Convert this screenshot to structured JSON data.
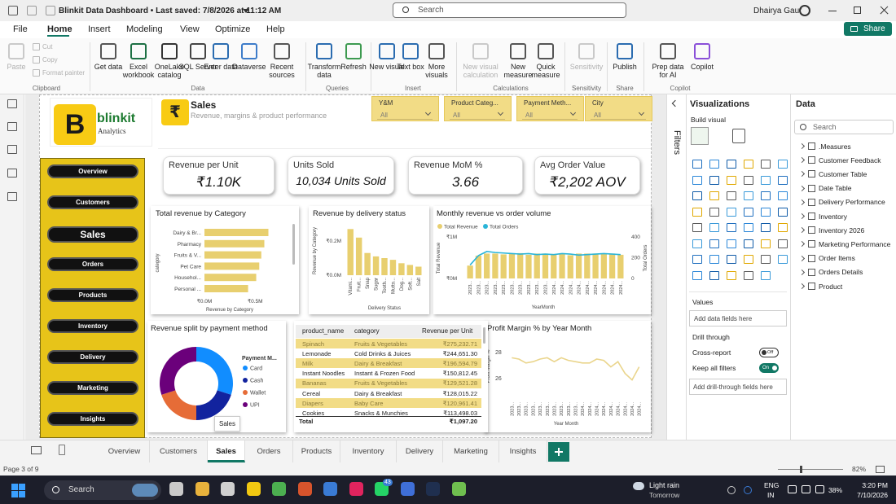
{
  "titlebar": {
    "title": "Blinkit Data Dashboard • Last saved: 7/8/2026 at 11:12 AM",
    "search": "Search",
    "user": "Dhairya Gaur"
  },
  "menu": {
    "items": [
      "File",
      "Home",
      "Insert",
      "Modeling",
      "View",
      "Optimize",
      "Help"
    ],
    "active": 1,
    "share": "Share"
  },
  "ribbon": {
    "groups": [
      {
        "label": "Clipboard",
        "items": [
          "Paste",
          "Cut",
          "Copy",
          "Format painter"
        ]
      },
      {
        "label": "Data",
        "items": [
          "Get data",
          "Excel workbook",
          "OneLake catalog",
          "SQL Server",
          "Enter data",
          "Dataverse",
          "Recent sources"
        ]
      },
      {
        "label": "Queries",
        "items": [
          "Transform data",
          "Refresh"
        ]
      },
      {
        "label": "Insert",
        "items": [
          "New visual",
          "Text box",
          "More visuals"
        ]
      },
      {
        "label": "Calculations",
        "items": [
          "New visual calculation",
          "New measure",
          "Quick measure"
        ]
      },
      {
        "label": "Sensitivity",
        "items": [
          "Sensitivity"
        ]
      },
      {
        "label": "Share",
        "items": [
          "Publish"
        ]
      },
      {
        "label": "Copilot",
        "items": [
          "Prep data for AI",
          "Copilot"
        ]
      }
    ]
  },
  "report": {
    "logo": {
      "mark": "B",
      "name": "blinkit",
      "tagline": "Analytics"
    },
    "header": {
      "icon": "₹",
      "title": "Sales",
      "subtitle": "Revenue, margins & product performance"
    },
    "slicers": [
      {
        "label": "Y&M",
        "value": "All"
      },
      {
        "label": "Product Categ...",
        "value": "All"
      },
      {
        "label": "Payment Meth...",
        "value": "All"
      },
      {
        "label": "City",
        "value": "All"
      }
    ],
    "nav": {
      "items": [
        "Overview",
        "Customers",
        "Sales",
        "Orders",
        "Products",
        "Inventory",
        "Delivery",
        "Marketing",
        "Insights"
      ],
      "active": 2
    },
    "kpis": [
      {
        "label": "Revenue per Unit",
        "value": "₹1.10K"
      },
      {
        "label": "Units Sold",
        "value": "10,034 Units Sold"
      },
      {
        "label": "Revenue MoM %",
        "value": "3.66"
      },
      {
        "label": "Avg Order Value",
        "value": "₹2,202 AOV"
      }
    ],
    "table": {
      "columns": [
        "product_name",
        "category",
        "Revenue per Unit"
      ],
      "rows": [
        [
          "Spinach",
          "Fruits & Vegetables",
          "₹275,232.71"
        ],
        [
          "Lemonade",
          "Cold Drinks & Juices",
          "₹244,651.30"
        ],
        [
          "Milk",
          "Dairy & Breakfast",
          "₹196,594.79"
        ],
        [
          "Instant Noodles",
          "Instant & Frozen Food",
          "₹150,812.45"
        ],
        [
          "Bananas",
          "Fruits & Vegetables",
          "₹129,521.28"
        ],
        [
          "Cereal",
          "Dairy & Breakfast",
          "₹128,015.22"
        ],
        [
          "Diapers",
          "Baby Care",
          "₹120,961.41"
        ],
        [
          "Cookies",
          "Snacks & Munchies",
          "₹113,498.03"
        ]
      ],
      "total": {
        "label": "Total",
        "value": "₹1,097.20"
      }
    }
  },
  "chart_data": [
    {
      "type": "bar",
      "horizontal": true,
      "title": "Total revenue by Category",
      "categories": [
        "Dairy & Br...",
        "Pharmacy",
        "Fruits & V...",
        "Pet Care",
        "Househol...",
        "Personal ..."
      ],
      "values": [
        0.63,
        0.59,
        0.56,
        0.54,
        0.51,
        0.43
      ],
      "color": "#e8cf6f",
      "xlim": [
        0,
        0.65
      ],
      "xticks": [
        {
          "value": 0,
          "label": "₹0.0M"
        },
        {
          "value": 0.5,
          "label": "₹0.5M"
        }
      ],
      "x_label": "Revenue by Category",
      "y_label": "category"
    },
    {
      "type": "bar",
      "title": "Revenue by delivery status",
      "categories": [
        "Vitami...",
        "Fruit...",
        "Snap",
        "Sugar",
        "Tooth...",
        "Mutto...",
        "Dog...",
        "Soft...",
        "Salt"
      ],
      "values": [
        0.27,
        0.22,
        0.13,
        0.11,
        0.1,
        0.09,
        0.07,
        0.06,
        0.05
      ],
      "color": "#e8cf6f",
      "ylim": [
        0,
        0.3
      ],
      "yticks": [
        {
          "value": 0,
          "label": "₹0.0M"
        },
        {
          "value": 0.2,
          "label": "₹0.2M"
        }
      ],
      "x_label": "Delivery Status",
      "y_label": "Revenue by Category"
    },
    {
      "type": "combo",
      "title": "Monthly revenue vs order volume",
      "categories": [
        "2023...",
        "2023...",
        "2023...",
        "2023...",
        "2023...",
        "2023...",
        "2023...",
        "2023...",
        "2023...",
        "2023...",
        "2024...",
        "2024...",
        "2024...",
        "2024...",
        "2024...",
        "2024...",
        "2024...",
        "2024...",
        "2024..."
      ],
      "series": [
        {
          "name": "Total Revenue",
          "type": "bar",
          "color": "#e8cf6f",
          "values": [
            0.31,
            0.55,
            0.6,
            0.6,
            0.58,
            0.6,
            0.61,
            0.57,
            0.6,
            0.6,
            0.59,
            0.6,
            0.56,
            0.6,
            0.6,
            0.6,
            0.59,
            0.6,
            0.57
          ]
        },
        {
          "name": "Total Orders",
          "type": "line",
          "axis": "y2",
          "color": "#2bb5d8",
          "values": [
            130,
            220,
            260,
            250,
            245,
            240,
            235,
            240,
            230,
            235,
            230,
            240,
            235,
            225,
            230,
            235,
            240,
            235,
            230
          ]
        }
      ],
      "ylim": [
        0,
        1
      ],
      "yticks": [
        {
          "value": 0,
          "label": "₹0M"
        },
        {
          "value": 1,
          "label": "₹1M"
        }
      ],
      "y2lim": [
        0,
        400
      ],
      "y2ticks": [
        0,
        200,
        400
      ],
      "x_label": "YearMonth",
      "y_label": "Total Revenue",
      "y2_label": "Total Orders"
    },
    {
      "type": "pie",
      "donut": true,
      "title": "Revenue split by payment method",
      "legend_title": "Payment M...",
      "categories": [
        "Card",
        "Cash",
        "Wallet",
        "UPI"
      ],
      "values": [
        30,
        20,
        20,
        30
      ],
      "colors": [
        "#118dff",
        "#12239e",
        "#e66c37",
        "#6b007b"
      ]
    },
    {
      "type": "line",
      "title": "Profit Margin % by Year Month",
      "categories": [
        "2023...",
        "2023...",
        "2023...",
        "2023...",
        "2023...",
        "2023...",
        "2023...",
        "2023...",
        "2023...",
        "2023...",
        "2024...",
        "2024...",
        "2024...",
        "2024...",
        "2024...",
        "2024...",
        "2024...",
        "2024...",
        "2024..."
      ],
      "values": [
        27.6,
        27.5,
        27.2,
        27.3,
        27.5,
        27.6,
        27.3,
        27.6,
        27.4,
        27.3,
        27.2,
        27.2,
        27.5,
        27.4,
        26.9,
        27.3,
        26.4,
        25.9,
        26.9
      ],
      "color": "#ead58c",
      "ylim": [
        25.5,
        28.75
      ],
      "yticks": [
        26,
        28
      ],
      "x_label": "Year Month",
      "y_label": "Profit Margin %"
    }
  ],
  "panes": {
    "filters": "Filters",
    "visualizations": {
      "title": "Visualizations",
      "build": "Build visual",
      "values": "Values",
      "values_hint": "Add data fields here",
      "drill": "Drill through",
      "cross_report": "Cross-report",
      "cross_state": "Off",
      "keep_filters": "Keep all filters",
      "keep_state": "On",
      "drill_hint": "Add drill-through fields here"
    },
    "data": {
      "title": "Data",
      "search": "Search",
      "fields": [
        ".Measures",
        "Customer Feedback",
        "Customer Table",
        "Date Table",
        "Delivery Performance",
        "Inventory",
        "Inventory 2026",
        "Marketing Performance",
        "Order Items",
        "Orders Details",
        "Product"
      ]
    }
  },
  "pages": {
    "tabs": [
      "Overview",
      "Customers",
      "Sales",
      "Orders",
      "Products",
      "Inventory",
      "Delivery",
      "Marketing",
      "Insights"
    ],
    "active": 2,
    "tooltip": "Sales",
    "status": "Page 3 of 9",
    "zoom": "82%"
  },
  "taskbar": {
    "search": "Search",
    "badge": "43",
    "weather": "Light rain",
    "weather_when": "Tomorrow",
    "lang": "ENG",
    "region": "IN",
    "battery": "38%",
    "time": "3:20 PM",
    "date": "7/10/2026"
  }
}
